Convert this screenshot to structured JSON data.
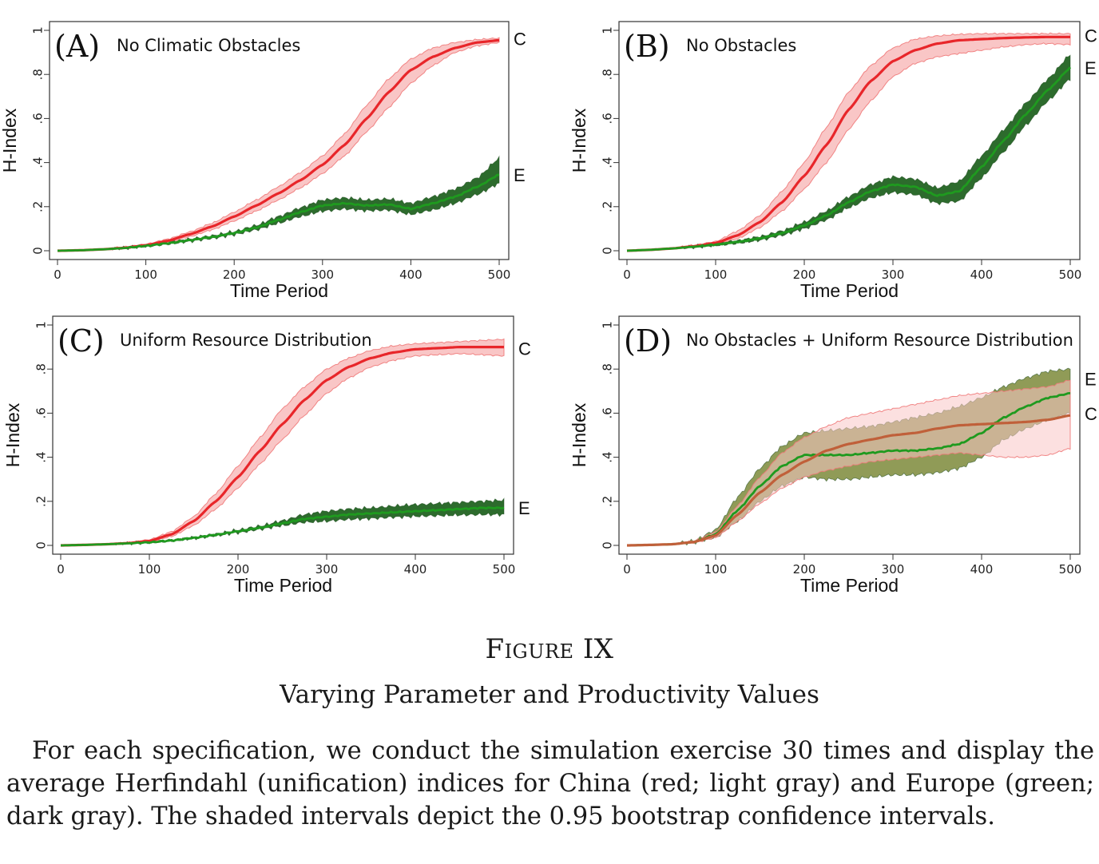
{
  "caption": {
    "figure_number": "Figure IX",
    "title": "Varying Parameter and Productivity Values",
    "note": "For each specification, we conduct the simulation exercise 30 times and display the average Herfindahl (unification) indices for China (red; light gray) and Europe (green; dark gray). The shaded intervals depict the 0.95 bootstrap confidence intervals."
  },
  "colors": {
    "china_line": "#e8262a",
    "china_band": "#f9c6c6",
    "china_band_edge": "#f07a7a",
    "europe_line": "#1f9a1f",
    "europe_band": "#2d6b2d",
    "europe_band_D": "#7d8a3a"
  },
  "chart_data": [
    {
      "type": "line",
      "panel_label": "(A)",
      "title": "No Climatic Obstacles",
      "xlabel": "Time Period",
      "ylabel": "H-Index",
      "xlim": [
        0,
        500
      ],
      "ylim": [
        0,
        1
      ],
      "xticks": [
        "0",
        "100",
        "200",
        "300",
        "400",
        "500"
      ],
      "yticks": [
        "0",
        ".2",
        ".4",
        ".6",
        ".8",
        "1"
      ],
      "series": [
        {
          "name": "C",
          "x": [
            0,
            25,
            50,
            75,
            100,
            125,
            150,
            175,
            200,
            225,
            250,
            275,
            300,
            325,
            350,
            375,
            400,
            425,
            450,
            475,
            500
          ],
          "values": [
            0,
            0.002,
            0.006,
            0.013,
            0.025,
            0.045,
            0.075,
            0.11,
            0.155,
            0.205,
            0.26,
            0.32,
            0.39,
            0.48,
            0.6,
            0.72,
            0.82,
            0.88,
            0.92,
            0.945,
            0.955
          ],
          "lower": [
            0,
            0.001,
            0.004,
            0.01,
            0.02,
            0.037,
            0.064,
            0.095,
            0.135,
            0.18,
            0.23,
            0.285,
            0.35,
            0.43,
            0.54,
            0.65,
            0.76,
            0.84,
            0.9,
            0.93,
            0.945
          ],
          "upper": [
            0,
            0.003,
            0.008,
            0.017,
            0.03,
            0.053,
            0.086,
            0.125,
            0.175,
            0.23,
            0.29,
            0.355,
            0.43,
            0.53,
            0.66,
            0.78,
            0.87,
            0.92,
            0.945,
            0.958,
            0.965
          ]
        },
        {
          "name": "E",
          "x": [
            0,
            25,
            50,
            75,
            100,
            125,
            150,
            175,
            200,
            225,
            250,
            275,
            300,
            325,
            350,
            375,
            400,
            425,
            450,
            475,
            500
          ],
          "values": [
            0,
            0.002,
            0.006,
            0.012,
            0.022,
            0.034,
            0.048,
            0.062,
            0.08,
            0.105,
            0.14,
            0.175,
            0.205,
            0.215,
            0.205,
            0.21,
            0.19,
            0.215,
            0.245,
            0.29,
            0.345
          ],
          "lower": [
            0,
            0.001,
            0.005,
            0.01,
            0.019,
            0.03,
            0.043,
            0.056,
            0.073,
            0.095,
            0.125,
            0.155,
            0.18,
            0.19,
            0.182,
            0.185,
            0.165,
            0.185,
            0.215,
            0.255,
            0.305
          ],
          "upper": [
            0,
            0.003,
            0.007,
            0.014,
            0.025,
            0.038,
            0.053,
            0.068,
            0.087,
            0.115,
            0.155,
            0.195,
            0.23,
            0.24,
            0.23,
            0.235,
            0.215,
            0.245,
            0.28,
            0.33,
            0.42
          ]
        }
      ]
    },
    {
      "type": "line",
      "panel_label": "(B)",
      "title": "No Obstacles",
      "xlabel": "Time Period",
      "ylabel": "H-Index",
      "xlim": [
        0,
        500
      ],
      "ylim": [
        0,
        1
      ],
      "xticks": [
        "0",
        "100",
        "200",
        "300",
        "400",
        "500"
      ],
      "yticks": [
        "0",
        ".2",
        ".4",
        ".6",
        ".8",
        "1"
      ],
      "series": [
        {
          "name": "C",
          "x": [
            0,
            25,
            50,
            75,
            100,
            125,
            150,
            175,
            200,
            225,
            250,
            275,
            300,
            325,
            350,
            375,
            400,
            425,
            450,
            475,
            500
          ],
          "values": [
            0,
            0.004,
            0.01,
            0.02,
            0.035,
            0.07,
            0.13,
            0.22,
            0.34,
            0.48,
            0.64,
            0.77,
            0.86,
            0.91,
            0.94,
            0.955,
            0.96,
            0.965,
            0.968,
            0.97,
            0.97
          ],
          "lower": [
            0,
            0.003,
            0.008,
            0.016,
            0.03,
            0.055,
            0.105,
            0.18,
            0.28,
            0.4,
            0.55,
            0.68,
            0.79,
            0.85,
            0.88,
            0.895,
            0.91,
            0.925,
            0.935,
            0.94,
            0.935
          ],
          "upper": [
            0,
            0.005,
            0.012,
            0.025,
            0.042,
            0.09,
            0.16,
            0.27,
            0.4,
            0.56,
            0.72,
            0.84,
            0.92,
            0.96,
            0.975,
            0.982,
            0.985,
            0.985,
            0.985,
            0.985,
            0.985
          ]
        },
        {
          "name": "E",
          "x": [
            0,
            25,
            50,
            75,
            100,
            125,
            150,
            175,
            200,
            225,
            250,
            275,
            300,
            325,
            350,
            375,
            400,
            425,
            450,
            475,
            500
          ],
          "values": [
            0,
            0.004,
            0.01,
            0.018,
            0.028,
            0.04,
            0.056,
            0.08,
            0.115,
            0.16,
            0.22,
            0.27,
            0.3,
            0.29,
            0.25,
            0.27,
            0.38,
            0.5,
            0.62,
            0.73,
            0.83
          ],
          "lower": [
            0,
            0.003,
            0.008,
            0.015,
            0.024,
            0.034,
            0.048,
            0.07,
            0.1,
            0.14,
            0.195,
            0.24,
            0.265,
            0.255,
            0.215,
            0.225,
            0.33,
            0.45,
            0.57,
            0.68,
            0.78
          ],
          "upper": [
            0,
            0.005,
            0.012,
            0.021,
            0.032,
            0.046,
            0.064,
            0.09,
            0.13,
            0.18,
            0.245,
            0.3,
            0.335,
            0.325,
            0.285,
            0.315,
            0.43,
            0.55,
            0.67,
            0.78,
            0.89
          ]
        }
      ]
    },
    {
      "type": "line",
      "panel_label": "(C)",
      "title": "Uniform Resource Distribution",
      "xlabel": "Time Period",
      "ylabel": "H-Index",
      "xlim": [
        0,
        500
      ],
      "ylim": [
        0,
        1
      ],
      "xticks": [
        "0",
        "100",
        "200",
        "300",
        "400",
        "500"
      ],
      "yticks": [
        "0",
        ".2",
        ".4",
        ".6",
        ".8",
        "1"
      ],
      "series": [
        {
          "name": "C",
          "x": [
            0,
            25,
            50,
            75,
            100,
            125,
            150,
            175,
            200,
            225,
            250,
            275,
            300,
            325,
            350,
            375,
            400,
            425,
            450,
            475,
            500
          ],
          "values": [
            0,
            0.002,
            0.005,
            0.01,
            0.02,
            0.05,
            0.11,
            0.2,
            0.31,
            0.43,
            0.55,
            0.66,
            0.75,
            0.81,
            0.85,
            0.875,
            0.89,
            0.895,
            0.9,
            0.9,
            0.9
          ],
          "lower": [
            0,
            0.001,
            0.004,
            0.008,
            0.016,
            0.04,
            0.09,
            0.165,
            0.26,
            0.37,
            0.48,
            0.59,
            0.69,
            0.76,
            0.81,
            0.84,
            0.86,
            0.865,
            0.87,
            0.865,
            0.86
          ],
          "upper": [
            0,
            0.003,
            0.006,
            0.012,
            0.026,
            0.062,
            0.13,
            0.235,
            0.36,
            0.49,
            0.62,
            0.72,
            0.8,
            0.85,
            0.885,
            0.905,
            0.915,
            0.92,
            0.925,
            0.93,
            0.935
          ]
        },
        {
          "name": "E",
          "x": [
            0,
            25,
            50,
            75,
            100,
            125,
            150,
            175,
            200,
            225,
            250,
            275,
            300,
            325,
            350,
            375,
            400,
            425,
            450,
            475,
            500
          ],
          "values": [
            0,
            0.002,
            0.005,
            0.009,
            0.014,
            0.022,
            0.034,
            0.048,
            0.064,
            0.08,
            0.1,
            0.12,
            0.13,
            0.14,
            0.145,
            0.15,
            0.155,
            0.16,
            0.165,
            0.17,
            0.17
          ],
          "lower": [
            0,
            0.001,
            0.004,
            0.008,
            0.012,
            0.02,
            0.031,
            0.044,
            0.058,
            0.073,
            0.09,
            0.105,
            0.11,
            0.118,
            0.122,
            0.128,
            0.132,
            0.135,
            0.138,
            0.14,
            0.14
          ],
          "upper": [
            0,
            0.003,
            0.006,
            0.01,
            0.016,
            0.024,
            0.037,
            0.052,
            0.07,
            0.088,
            0.112,
            0.14,
            0.155,
            0.165,
            0.17,
            0.178,
            0.185,
            0.19,
            0.195,
            0.2,
            0.205
          ]
        }
      ]
    },
    {
      "type": "line",
      "panel_label": "(D)",
      "title": "No Obstacles + Uniform Resource Distribution",
      "xlabel": "Time Period",
      "ylabel": "H-Index",
      "xlim": [
        0,
        500
      ],
      "ylim": [
        0,
        1
      ],
      "xticks": [
        "0",
        "100",
        "200",
        "300",
        "400",
        "500"
      ],
      "yticks": [
        "0",
        ".2",
        ".4",
        ".6",
        ".8",
        "1"
      ],
      "series": [
        {
          "name": "E",
          "x": [
            0,
            25,
            50,
            75,
            100,
            125,
            150,
            175,
            200,
            225,
            250,
            275,
            300,
            325,
            350,
            375,
            400,
            425,
            450,
            475,
            500
          ],
          "values": [
            0,
            0.002,
            0.005,
            0.015,
            0.05,
            0.16,
            0.27,
            0.36,
            0.41,
            0.41,
            0.41,
            0.42,
            0.43,
            0.43,
            0.44,
            0.46,
            0.51,
            0.58,
            0.63,
            0.67,
            0.69
          ],
          "lower": [
            0,
            0.001,
            0.004,
            0.012,
            0.035,
            0.11,
            0.2,
            0.27,
            0.31,
            0.3,
            0.3,
            0.31,
            0.32,
            0.32,
            0.33,
            0.35,
            0.4,
            0.48,
            0.53,
            0.57,
            0.6
          ],
          "upper": [
            0,
            0.003,
            0.006,
            0.02,
            0.07,
            0.22,
            0.35,
            0.45,
            0.51,
            0.52,
            0.53,
            0.54,
            0.56,
            0.58,
            0.6,
            0.63,
            0.67,
            0.72,
            0.76,
            0.79,
            0.8
          ]
        },
        {
          "name": "C",
          "x": [
            0,
            25,
            50,
            75,
            100,
            125,
            150,
            175,
            200,
            225,
            250,
            275,
            300,
            325,
            350,
            375,
            400,
            425,
            450,
            475,
            500
          ],
          "values": [
            0,
            0.002,
            0.005,
            0.015,
            0.045,
            0.14,
            0.24,
            0.32,
            0.38,
            0.43,
            0.46,
            0.48,
            0.5,
            0.51,
            0.53,
            0.545,
            0.55,
            0.555,
            0.56,
            0.57,
            0.59
          ],
          "lower": [
            0,
            0.001,
            0.004,
            0.012,
            0.035,
            0.11,
            0.19,
            0.26,
            0.31,
            0.34,
            0.36,
            0.38,
            0.39,
            0.4,
            0.41,
            0.42,
            0.41,
            0.4,
            0.4,
            0.41,
            0.44
          ],
          "upper": [
            0,
            0.003,
            0.006,
            0.02,
            0.06,
            0.18,
            0.31,
            0.42,
            0.49,
            0.54,
            0.58,
            0.6,
            0.62,
            0.64,
            0.66,
            0.68,
            0.69,
            0.7,
            0.71,
            0.72,
            0.75
          ]
        }
      ]
    }
  ]
}
